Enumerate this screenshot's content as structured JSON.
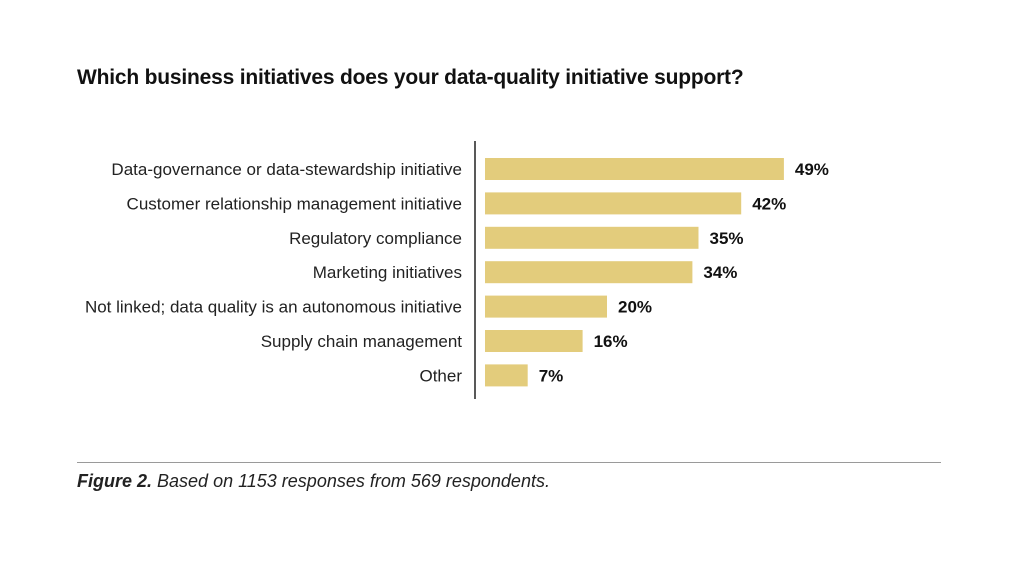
{
  "chart_data": {
    "type": "bar",
    "orientation": "horizontal",
    "title": "Which business initiatives does your data-quality initiative support?",
    "categories": [
      "Data-governance or data-stewardship initiative",
      "Customer relationship management initiative",
      "Regulatory compliance",
      "Marketing initiatives",
      "Not linked; data quality is an autonomous initiative",
      "Supply chain management",
      "Other"
    ],
    "values": [
      49,
      42,
      35,
      34,
      20,
      16,
      7
    ],
    "value_labels": [
      "49%",
      "42%",
      "35%",
      "34%",
      "20%",
      "16%",
      "7%"
    ],
    "unit": "%",
    "xlim": [
      0,
      60
    ],
    "bar_color": "#e3cc7c",
    "grid": false,
    "legend": "none"
  },
  "caption": {
    "figure": "Figure 2.",
    "text": "Based on 1153 responses from 569 respondents."
  }
}
